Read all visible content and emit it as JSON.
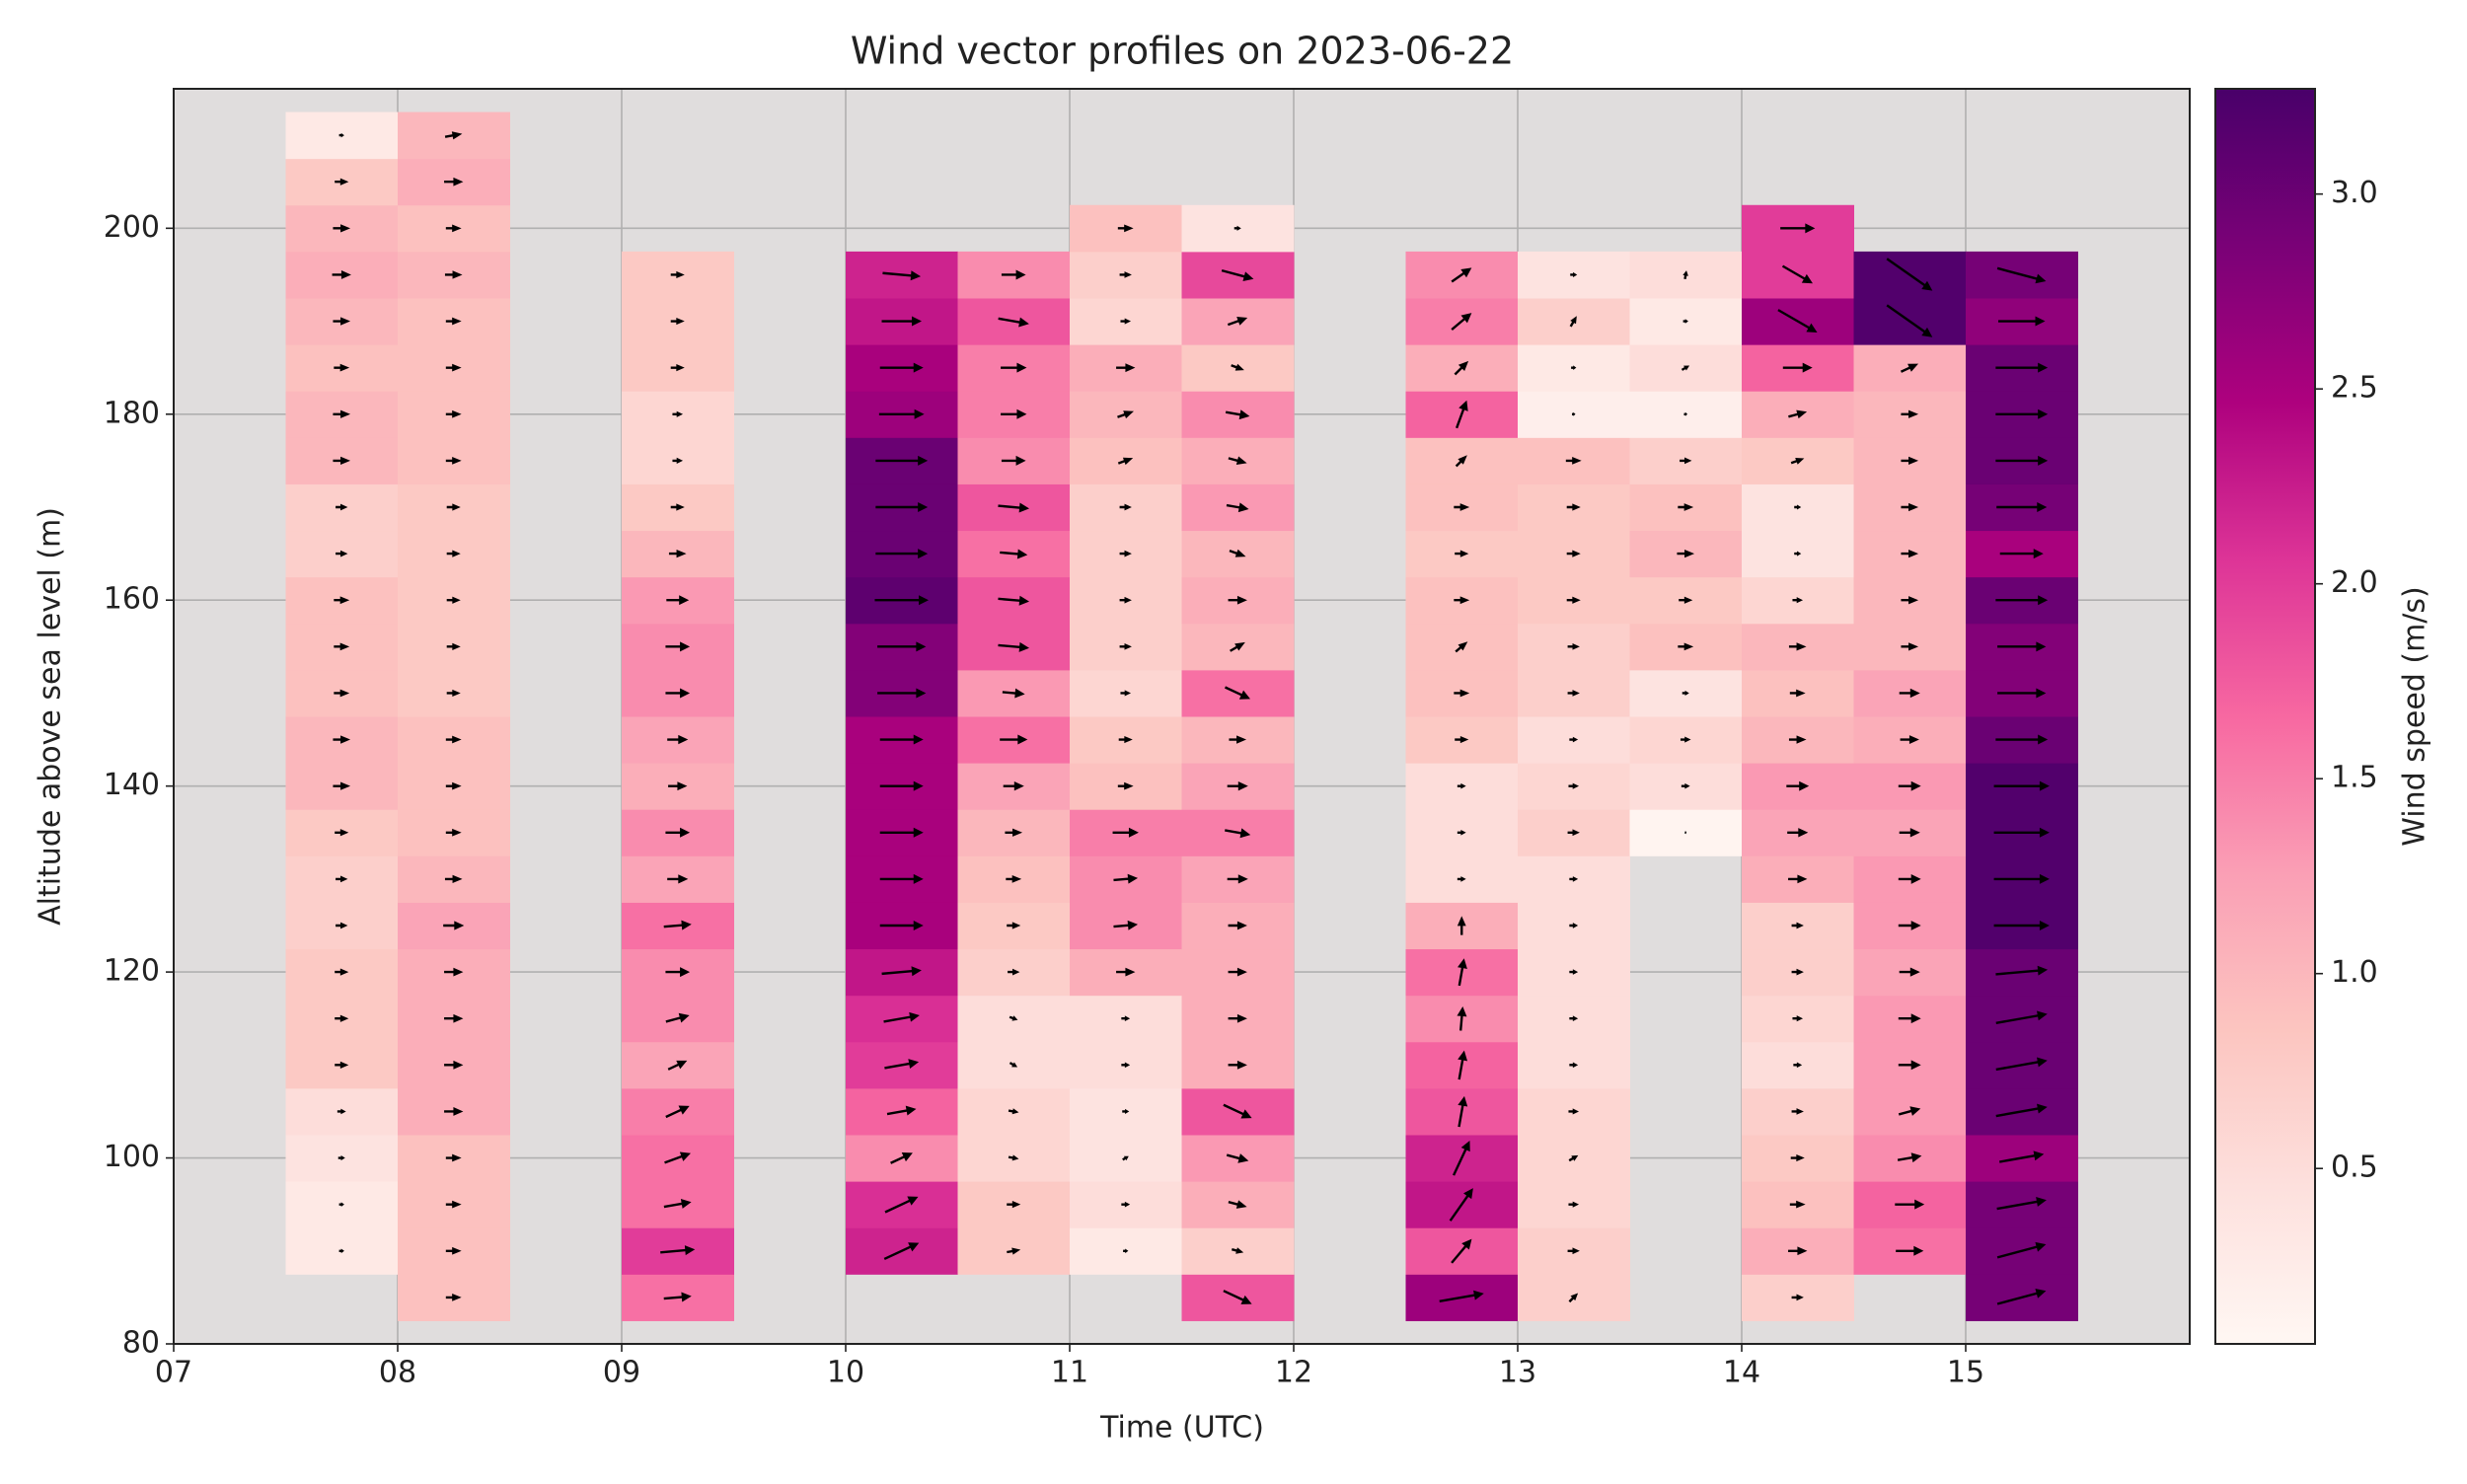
{
  "chart_data": {
    "type": "wind-heatmap",
    "title": "Wind vector profiles on 2023-06-22",
    "xlabel": "Time (UTC)",
    "ylabel": "Altitude above sea level (m)",
    "colorbar_label": "Wind speed (m/s)",
    "xlim": [
      7,
      16
    ],
    "ylim": [
      80,
      215
    ],
    "xticks": [
      {
        "value": 7,
        "label": "07"
      },
      {
        "value": 8,
        "label": "08"
      },
      {
        "value": 9,
        "label": "09"
      },
      {
        "value": 10,
        "label": "10"
      },
      {
        "value": 11,
        "label": "11"
      },
      {
        "value": 12,
        "label": "12"
      },
      {
        "value": 13,
        "label": "13"
      },
      {
        "value": 14,
        "label": "14"
      },
      {
        "value": 15,
        "label": "15"
      }
    ],
    "yticks": [
      80,
      100,
      120,
      140,
      160,
      180,
      200
    ],
    "clim": [
      0.05,
      3.27
    ],
    "cticks": [
      0.5,
      {
        "value": 1,
        "label": "1.0"
      },
      1.5,
      {
        "value": 2,
        "label": "2.0"
      },
      2.5,
      {
        "value": 3,
        "label": "3.0"
      }
    ],
    "colormap": [
      "#fff7f3",
      "#fde0dd",
      "#fcc5c0",
      "#fa9fb5",
      "#f768a1",
      "#dd3497",
      "#ae017e",
      "#7a0177",
      "#49006a"
    ],
    "grid": true,
    "columns": [
      {
        "x": 7.75,
        "y": [
          90,
          95,
          100,
          105,
          110,
          115,
          120,
          125,
          130,
          135,
          140,
          145,
          150,
          155,
          160,
          165,
          170,
          175,
          180,
          185,
          190,
          195,
          200,
          205,
          210
        ],
        "speed": [
          0.3,
          0.3,
          0.4,
          0.5,
          0.8,
          0.8,
          0.8,
          0.7,
          0.7,
          0.8,
          1.0,
          1.0,
          0.9,
          0.9,
          0.9,
          0.7,
          0.7,
          1.0,
          1.0,
          0.9,
          1.0,
          1.1,
          1.0,
          0.8,
          0.3
        ],
        "angle": [
          0,
          0,
          0,
          0,
          0,
          0,
          0,
          0,
          0,
          0,
          0,
          0,
          0,
          0,
          0,
          0,
          0,
          0,
          0,
          0,
          0,
          0,
          0,
          0,
          0
        ]
      },
      {
        "x": 8.25,
        "y": [
          85,
          90,
          95,
          100,
          105,
          110,
          115,
          120,
          125,
          130,
          135,
          140,
          145,
          150,
          155,
          160,
          165,
          170,
          175,
          180,
          185,
          190,
          195,
          200,
          205,
          210
        ],
        "speed": [
          0.9,
          0.9,
          0.9,
          0.9,
          1.1,
          1.1,
          1.1,
          1.1,
          1.2,
          1.0,
          0.9,
          0.9,
          0.9,
          0.8,
          0.8,
          0.8,
          0.8,
          0.8,
          0.9,
          0.9,
          0.9,
          0.9,
          1.0,
          0.9,
          1.1,
          1.0
        ],
        "angle": [
          0,
          0,
          0,
          0,
          0,
          0,
          0,
          0,
          0,
          0,
          0,
          0,
          0,
          0,
          0,
          0,
          0,
          0,
          0,
          0,
          0,
          0,
          0,
          0,
          0,
          10
        ]
      },
      {
        "x": 9.25,
        "y": [
          85,
          90,
          95,
          100,
          105,
          110,
          115,
          120,
          125,
          130,
          135,
          140,
          145,
          150,
          155,
          160,
          165,
          170,
          175,
          180,
          185,
          190,
          195
        ],
        "speed": [
          1.6,
          2.0,
          1.6,
          1.6,
          1.5,
          1.2,
          1.4,
          1.4,
          1.6,
          1.2,
          1.4,
          1.1,
          1.2,
          1.4,
          1.4,
          1.3,
          1.0,
          0.8,
          0.6,
          0.6,
          0.8,
          0.8,
          0.8
        ],
        "angle": [
          5,
          5,
          10,
          20,
          25,
          25,
          15,
          0,
          5,
          0,
          0,
          0,
          0,
          0,
          0,
          0,
          0,
          0,
          0,
          0,
          0,
          0,
          0
        ]
      },
      {
        "x": 10.25,
        "y": [
          90,
          95,
          100,
          105,
          110,
          115,
          120,
          125,
          130,
          135,
          140,
          145,
          150,
          155,
          160,
          165,
          170,
          175,
          180,
          185,
          190,
          195
        ],
        "speed": [
          2.2,
          2.1,
          1.4,
          1.7,
          2.0,
          2.1,
          2.3,
          2.5,
          2.5,
          2.5,
          2.5,
          2.5,
          2.8,
          2.8,
          3.1,
          3.0,
          3.0,
          3.0,
          2.6,
          2.5,
          2.3,
          2.2
        ],
        "angle": [
          25,
          25,
          25,
          10,
          10,
          10,
          5,
          0,
          0,
          0,
          0,
          0,
          0,
          0,
          0,
          0,
          0,
          0,
          0,
          0,
          0,
          -5
        ]
      },
      {
        "x": 10.75,
        "y": [
          90,
          95,
          100,
          105,
          110,
          115,
          120,
          125,
          130,
          135,
          140,
          145,
          150,
          155,
          160,
          165,
          170,
          175,
          180,
          185,
          190,
          195
        ],
        "speed": [
          0.8,
          0.8,
          0.6,
          0.6,
          0.5,
          0.5,
          0.7,
          0.8,
          0.9,
          1.0,
          1.2,
          1.6,
          1.3,
          1.8,
          1.8,
          1.6,
          1.8,
          1.4,
          1.5,
          1.5,
          1.8,
          1.4
        ],
        "angle": [
          10,
          0,
          -10,
          -10,
          -30,
          -20,
          0,
          0,
          0,
          0,
          0,
          0,
          -5,
          -5,
          -5,
          -5,
          -5,
          0,
          0,
          0,
          -10,
          0
        ]
      },
      {
        "x": 11.25,
        "y": [
          90,
          95,
          100,
          105,
          110,
          115,
          120,
          125,
          130,
          135,
          140,
          145,
          150,
          155,
          160,
          165,
          170,
          175,
          180,
          185,
          190,
          195,
          200
        ],
        "speed": [
          0.3,
          0.5,
          0.4,
          0.4,
          0.5,
          0.5,
          1.1,
          1.4,
          1.4,
          1.5,
          0.9,
          0.8,
          0.6,
          0.7,
          0.7,
          0.7,
          0.7,
          0.9,
          1.0,
          1.1,
          0.6,
          0.7,
          0.9
        ],
        "angle": [
          0,
          0,
          30,
          0,
          0,
          0,
          0,
          5,
          5,
          0,
          0,
          0,
          0,
          0,
          0,
          0,
          0,
          20,
          20,
          0,
          0,
          0,
          0
        ]
      },
      {
        "x": 11.75,
        "y": [
          85,
          90,
          95,
          100,
          105,
          110,
          115,
          120,
          125,
          130,
          135,
          140,
          145,
          150,
          155,
          160,
          165,
          170,
          175,
          180,
          185,
          190,
          195,
          200
        ],
        "speed": [
          1.8,
          0.7,
          1.1,
          1.3,
          1.8,
          1.1,
          1.1,
          1.1,
          1.1,
          1.2,
          1.5,
          1.2,
          1.0,
          1.6,
          1.0,
          1.1,
          1.0,
          1.3,
          1.1,
          1.4,
          0.8,
          1.2,
          1.9,
          0.4
        ],
        "angle": [
          -25,
          -15,
          -15,
          -15,
          -25,
          0,
          0,
          0,
          0,
          0,
          -10,
          0,
          0,
          -25,
          30,
          0,
          -20,
          -10,
          -15,
          -10,
          -20,
          20,
          -15,
          0
        ]
      },
      {
        "x": 12.75,
        "y": [
          85,
          90,
          95,
          100,
          105,
          110,
          115,
          120,
          125,
          130,
          135,
          140,
          145,
          150,
          155,
          160,
          165,
          170,
          175,
          180,
          185,
          190,
          195
        ],
        "speed": [
          2.6,
          1.8,
          2.3,
          2.2,
          1.8,
          1.7,
          1.4,
          1.6,
          1.1,
          0.5,
          0.5,
          0.5,
          0.8,
          0.9,
          0.9,
          0.9,
          0.8,
          0.9,
          0.9,
          1.7,
          1.1,
          1.5,
          1.4
        ],
        "angle": [
          10,
          50,
          55,
          65,
          80,
          80,
          85,
          80,
          90,
          0,
          0,
          0,
          0,
          0,
          40,
          0,
          0,
          0,
          45,
          70,
          45,
          40,
          35
        ]
      },
      {
        "x": 13.25,
        "y": [
          85,
          90,
          95,
          100,
          105,
          110,
          115,
          120,
          125,
          130,
          135,
          140,
          145,
          150,
          155,
          160,
          165,
          170,
          175,
          180,
          185,
          190,
          195
        ],
        "speed": [
          0.7,
          0.7,
          0.6,
          0.6,
          0.6,
          0.5,
          0.5,
          0.5,
          0.5,
          0.5,
          0.7,
          0.6,
          0.5,
          0.7,
          0.7,
          0.8,
          0.8,
          0.8,
          0.9,
          0.2,
          0.3,
          0.7,
          0.4
        ],
        "angle": [
          45,
          0,
          0,
          30,
          0,
          0,
          0,
          0,
          0,
          0,
          0,
          0,
          0,
          0,
          0,
          0,
          0,
          0,
          0,
          0,
          0,
          60,
          0
        ]
      },
      {
        "x": 13.75,
        "y": [
          135,
          140,
          145,
          150,
          155,
          160,
          165,
          170,
          175,
          180,
          185,
          190,
          195
        ],
        "speed": [
          0.1,
          0.5,
          0.6,
          0.4,
          0.9,
          0.8,
          1.0,
          0.9,
          0.7,
          0.2,
          0.5,
          0.3,
          0.5
        ],
        "angle": [
          0,
          0,
          0,
          0,
          0,
          0,
          0,
          0,
          0,
          0,
          30,
          0,
          80
        ]
      },
      {
        "x": 14.25,
        "y": [
          85,
          90,
          95,
          100,
          105,
          110,
          115,
          120,
          125,
          130,
          135,
          140,
          145,
          150,
          155,
          160,
          165,
          170,
          175,
          180,
          185,
          190,
          195,
          200
        ],
        "speed": [
          0.7,
          1.1,
          0.9,
          0.8,
          0.7,
          0.5,
          0.6,
          0.7,
          0.7,
          1.1,
          1.2,
          1.3,
          1.0,
          0.9,
          1.0,
          0.6,
          0.4,
          0.4,
          0.8,
          1.1,
          1.7,
          2.6,
          2.0,
          2.0
        ],
        "angle": [
          0,
          0,
          0,
          0,
          0,
          0,
          0,
          0,
          0,
          0,
          0,
          0,
          0,
          0,
          0,
          0,
          0,
          0,
          20,
          15,
          0,
          -30,
          -30,
          0
        ]
      },
      {
        "x": 14.75,
        "y": [
          90,
          95,
          100,
          105,
          110,
          115,
          120,
          125,
          130,
          135,
          140,
          145,
          150,
          155,
          160,
          165,
          170,
          175,
          180,
          185,
          190,
          195
        ],
        "speed": [
          1.6,
          1.7,
          1.4,
          1.3,
          1.3,
          1.3,
          1.2,
          1.3,
          1.3,
          1.2,
          1.3,
          1.1,
          1.2,
          1.0,
          1.0,
          1.0,
          1.0,
          1.0,
          1.0,
          1.1,
          3.2,
          3.2
        ],
        "angle": [
          0,
          0,
          10,
          15,
          0,
          0,
          0,
          0,
          0,
          0,
          0,
          0,
          0,
          0,
          0,
          0,
          0,
          0,
          0,
          25,
          -35,
          -35
        ]
      },
      {
        "x": 15.25,
        "y": [
          85,
          90,
          95,
          100,
          105,
          110,
          115,
          120,
          125,
          130,
          135,
          140,
          145,
          150,
          155,
          160,
          165,
          170,
          175,
          180,
          185,
          190,
          195
        ],
        "speed": [
          2.9,
          2.9,
          2.9,
          2.6,
          3.0,
          3.0,
          3.0,
          3.0,
          3.2,
          3.2,
          3.2,
          3.2,
          3.0,
          2.8,
          2.8,
          3.0,
          2.5,
          2.9,
          3.0,
          3.0,
          3.0,
          2.7,
          2.9
        ],
        "angle": [
          15,
          15,
          10,
          10,
          10,
          10,
          10,
          5,
          0,
          0,
          0,
          0,
          0,
          0,
          0,
          0,
          0,
          0,
          0,
          0,
          0,
          0,
          -15
        ]
      }
    ]
  }
}
